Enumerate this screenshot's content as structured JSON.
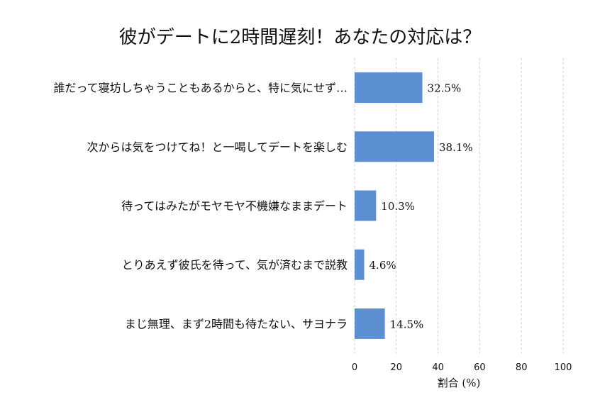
{
  "chart_data": {
    "type": "bar",
    "orientation": "horizontal",
    "title": "彼がデートに2時間遅刻！あなたの対応は？",
    "xlabel": "割合 (%)",
    "ylabel": "",
    "xlim": [
      0,
      100
    ],
    "xticks": [
      0,
      20,
      40,
      60,
      80,
      100
    ],
    "grid": "vertical-dashed",
    "bar_color": "#5b8fd1",
    "categories": [
      "誰だって寝坊しちゃうこともあるからと、特に気にせず…",
      "次からは気をつけてね！と一喝してデートを楽しむ",
      "待ってはみたがモヤモヤ不機嫌なままデート",
      "とりあえず彼氏を待って、気が済むまで説教",
      "まじ無理、まず2時間も待たない、サヨナラ"
    ],
    "values": [
      32.5,
      38.1,
      10.3,
      4.6,
      14.5
    ],
    "value_labels": [
      "32.5%",
      "38.1%",
      "10.3%",
      "4.6%",
      "14.5%"
    ]
  }
}
